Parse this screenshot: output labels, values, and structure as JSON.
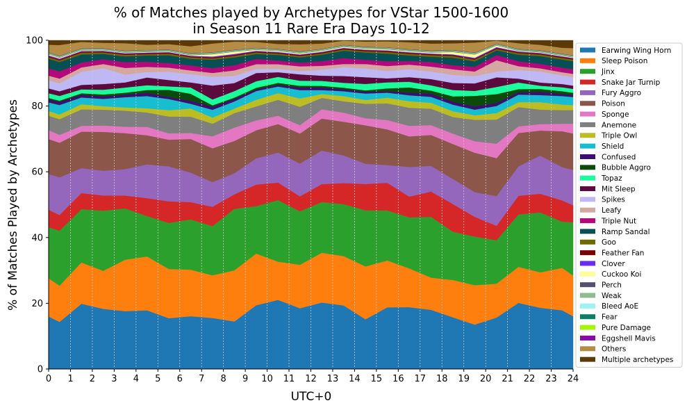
{
  "chart_data": {
    "type": "area",
    "stacked": true,
    "title_lines": [
      "% of Matches played by Archetypes for VStar 1500-1600",
      "in Season 11 Rare Era Days 10-12"
    ],
    "xlabel": "UTC+0",
    "ylabel": "% of Matches Played by Archetypes",
    "xlim": [
      0,
      24
    ],
    "ylim": [
      0,
      100
    ],
    "x_ticks": [
      0,
      1,
      2,
      3,
      4,
      5,
      6,
      7,
      8,
      9,
      10,
      11,
      12,
      13,
      14,
      15,
      16,
      17,
      18,
      19,
      20,
      21,
      22,
      23,
      24
    ],
    "y_ticks": [
      0,
      20,
      40,
      60,
      80,
      100
    ],
    "grid": "vertical dashed at each hour",
    "legend_position": "right, outside plot",
    "x": [
      0,
      0.5,
      1.5,
      2.5,
      3.5,
      4.5,
      5.5,
      6.5,
      7.5,
      8.5,
      9.5,
      10.5,
      11.5,
      12.5,
      13.5,
      14.5,
      15.5,
      16.5,
      17.5,
      18.5,
      19.5,
      20.5,
      21.5,
      22.5,
      23.5,
      24
    ],
    "series": [
      {
        "name": "Earwing Wing Horn",
        "color": "#1f77b4",
        "values": [
          16.5,
          15,
          20.2,
          19,
          18,
          18.3,
          16,
          16.8,
          15.8,
          14.7,
          19.5,
          20.8,
          18.2,
          20.3,
          19.6,
          15.5,
          18.5,
          18.8,
          18,
          15.5,
          13.5,
          16,
          20.2,
          19,
          18,
          16.2
        ]
      },
      {
        "name": "Sleep Poison",
        "color": "#ff7f0e",
        "values": [
          12,
          11.5,
          12.8,
          12,
          16,
          16.8,
          15.5,
          14.8,
          13.2,
          15.8,
          15.8,
          11.5,
          13,
          15.2,
          15.2,
          16.5,
          14,
          11.8,
          9.8,
          11.2,
          12,
          10.5,
          11,
          11,
          13,
          12.5
        ]
      },
      {
        "name": "Jinx",
        "color": "#2ca02c",
        "values": [
          16,
          17.5,
          16.5,
          19,
          16,
          12.6,
          14.5,
          16,
          15.2,
          19,
          14.5,
          18.5,
          16,
          15.5,
          16,
          17.5,
          15,
          15.5,
          18.5,
          14.5,
          14.8,
          13.5,
          16,
          18.6,
          14.2,
          16.3
        ]
      },
      {
        "name": "Snake Jar Turnip",
        "color": "#d62728",
        "values": [
          5.5,
          5,
          5,
          4.8,
          4,
          5.6,
          6.8,
          5.5,
          6,
          4.5,
          6.6,
          5.3,
          4.5,
          5.5,
          6.5,
          8.2,
          8.3,
          6.3,
          7.7,
          8.3,
          6,
          4.5,
          5.7,
          5.8,
          6.5,
          5.3
        ]
      },
      {
        "name": "Fury Aggro",
        "color": "#9467bd",
        "values": [
          11.2,
          12,
          7.7,
          7.8,
          8.2,
          10.5,
          11,
          9.4,
          7.6,
          6.5,
          8,
          9,
          9.8,
          10.2,
          8.5,
          6.3,
          5.3,
          9,
          7.8,
          7.5,
          7.5,
          9.2,
          9,
          11.8,
          10.2,
          10.8
        ]
      },
      {
        "name": "Poison",
        "color": "#8c564b",
        "values": [
          11,
          11,
          11.3,
          12.3,
          11.2,
          9.1,
          8.4,
          10.7,
          10.5,
          10,
          8.6,
          8.6,
          9,
          9.8,
          10.4,
          12,
          10.7,
          9.3,
          9.4,
          10.5,
          12,
          11.8,
          10.2,
          7.8,
          11,
          11.2
        ]
      },
      {
        "name": "Sponge",
        "color": "#e377c2",
        "values": [
          2.8,
          2.5,
          1.8,
          2,
          2,
          2.6,
          2,
          1.9,
          3.7,
          4.1,
          3,
          2.5,
          2.5,
          2.8,
          2.8,
          2.2,
          2.8,
          3.2,
          3,
          3.1,
          3.5,
          4.5,
          2,
          2,
          2.3,
          3
        ]
      },
      {
        "name": "Anemone",
        "color": "#7f7f7f",
        "values": [
          4.5,
          5,
          5.1,
          5,
          5,
          4.5,
          5.3,
          5.2,
          3.9,
          4.5,
          4.3,
          4.8,
          5.5,
          3.5,
          3.5,
          4.5,
          5,
          5.5,
          5,
          5,
          6.5,
          7.5,
          5.9,
          4.5,
          4.2,
          4.2
        ]
      },
      {
        "name": "Triple Owl",
        "color": "#bcbd22",
        "values": [
          1.5,
          1.5,
          1.6,
          1.1,
          1,
          1.3,
          2,
          2.6,
          1.9,
          1.4,
          2,
          2,
          2.5,
          1.2,
          1.6,
          1.2,
          1.7,
          2,
          1.8,
          1.7,
          1.4,
          2,
          1.5,
          2.3,
          1.7,
          1.5
        ]
      },
      {
        "name": "Shield",
        "color": "#17becf",
        "values": [
          2.7,
          3,
          2.1,
          2.3,
          3.2,
          3.8,
          3.5,
          1.5,
          2.4,
          2.2,
          2.7,
          2,
          2.5,
          1.2,
          1.5,
          2,
          1.5,
          1.8,
          1.8,
          2,
          1.7,
          2.2,
          2.3,
          2.2,
          2.6,
          2.5
        ]
      },
      {
        "name": "Confused",
        "color": "#3b0f6f",
        "values": [
          1,
          1,
          0.9,
          0.8,
          0.8,
          1,
          0.7,
          1,
          1,
          0.8,
          0.5,
          0.5,
          0.8,
          0.8,
          0.6,
          0.6,
          0.5,
          0.8,
          1,
          0.9,
          1,
          1,
          0.7,
          1,
          0.7,
          0.6
        ]
      },
      {
        "name": "Bubble Aggro",
        "color": "#0a4a0a",
        "values": [
          0.4,
          0.4,
          0.4,
          0.6,
          0.6,
          0.9,
          2.2,
          2.2,
          0.4,
          0.4,
          0.5,
          0.6,
          0.5,
          0.5,
          0.5,
          0.4,
          0.8,
          1.6,
          0.9,
          1.6,
          3.2,
          2.7,
          1,
          0.9,
          0.8,
          0.7
        ]
      },
      {
        "name": "Topaz",
        "color": "#1aff9c",
        "values": [
          1.5,
          1.5,
          1.2,
          1.5,
          1.6,
          1.5,
          1.1,
          2,
          1.8,
          2,
          2,
          1.8,
          1.5,
          1.5,
          1.5,
          2,
          1.8,
          1.7,
          1.6,
          1.9,
          1.5,
          2.2,
          2,
          1,
          1.2,
          1.2
        ]
      },
      {
        "name": "Mit Sleep",
        "color": "#5c0a3d",
        "values": [
          1.5,
          1.5,
          1.4,
          1.8,
          1.6,
          2.4,
          2,
          1.6,
          4.3,
          2.5,
          2.5,
          1.4,
          1.9,
          1.6,
          2.1,
          2.1,
          1.2,
          1.4,
          1.9,
          2.1,
          2.3,
          3,
          1.2,
          1,
          1,
          1
        ]
      },
      {
        "name": "Spikes",
        "color": "#c0b8f5",
        "values": [
          2.5,
          2.5,
          4,
          5,
          2.4,
          1.7,
          2.6,
          2.6,
          2.7,
          2.2,
          1.2,
          1,
          1,
          1.8,
          2.7,
          2.7,
          2.2,
          2.4,
          2.3,
          2.4,
          2.2,
          1.8,
          2.6,
          3.4,
          2.6,
          2.6
        ]
      },
      {
        "name": "Leafy",
        "color": "#d4a8a0",
        "values": [
          1.5,
          1.5,
          1.4,
          1.3,
          2.1,
          1.6,
          1.3,
          1.2,
          1.2,
          1.7,
          1.5,
          1.4,
          1.4,
          1.2,
          1,
          1.4,
          1.5,
          1.4,
          1.5,
          1.7,
          1.4,
          3.5,
          1.2,
          1,
          1,
          1
        ]
      },
      {
        "name": "Triple Nut",
        "color": "#b5087a",
        "values": [
          2.3,
          2.3,
          1.5,
          1.5,
          1.8,
          1.6,
          1.4,
          1.6,
          1.5,
          1.6,
          1.6,
          1.1,
          1.1,
          1.4,
          1.8,
          1.3,
          1.4,
          1.1,
          1.4,
          1.2,
          1.4,
          1.6,
          1.5,
          1.4,
          1.4,
          1.4
        ]
      },
      {
        "name": "Ramp Sandal",
        "color": "#064f55",
        "values": [
          3,
          3,
          2.5,
          1.7,
          1.8,
          2,
          2.5,
          2.1,
          2.6,
          2.4,
          1.5,
          1.7,
          1.6,
          2,
          2.3,
          2.3,
          2.3,
          1.7,
          1.6,
          2.3,
          1.7,
          1.5,
          2,
          2.4,
          2.5,
          2.5
        ]
      },
      {
        "name": "Goo",
        "color": "#6e6a00",
        "values": [
          0.5,
          0.5,
          0.6,
          0.5,
          0.5,
          0.4,
          0.5,
          0.5,
          0.4,
          0.5,
          0.5,
          0.4,
          0.4,
          0.4,
          0.4,
          0.4,
          0.5,
          0.5,
          0.5,
          0.5,
          0.5,
          0.4,
          0.5,
          0.5,
          0.5,
          0.5
        ]
      },
      {
        "name": "Feather Fan",
        "color": "#7a0000",
        "values": [
          0.3,
          0.3,
          0.3,
          0.3,
          0.3,
          0.3,
          0.3,
          0.3,
          0.3,
          0.3,
          0.3,
          0.3,
          0.3,
          0.3,
          0.3,
          0.3,
          0.3,
          0.3,
          0.3,
          0.3,
          0.3,
          0.3,
          0.3,
          0.3,
          0.3,
          0.3
        ]
      },
      {
        "name": "Clover",
        "color": "#6a2bf5",
        "values": [
          0.3,
          0.3,
          0.2,
          0.2,
          0.2,
          0.2,
          0.2,
          0.2,
          0.3,
          0.3,
          0.2,
          0.2,
          0.2,
          0.2,
          0.2,
          0.2,
          0.2,
          0.2,
          0.2,
          0.2,
          0.3,
          0.3,
          0.2,
          0.2,
          0.2,
          0.2
        ]
      },
      {
        "name": "Cuckoo Koi",
        "color": "#ffff99",
        "values": [
          0.3,
          0.3,
          0.2,
          0.2,
          0.2,
          0.2,
          0.2,
          0.2,
          0.7,
          0.7,
          0.3,
          0.3,
          0.3,
          0.3,
          0.3,
          0.3,
          0.3,
          0.3,
          0.3,
          0.7,
          1,
          0.5,
          0.2,
          0.2,
          0.2,
          0.2
        ]
      },
      {
        "name": "Perch",
        "color": "#54506e",
        "values": [
          0.1,
          0.1,
          0.1,
          0.1,
          0.1,
          0.1,
          0.1,
          0.1,
          0.1,
          0.1,
          0.1,
          0.1,
          0.1,
          0.1,
          0.1,
          0.1,
          0.1,
          0.1,
          0.1,
          0.1,
          0.1,
          0.1,
          0.1,
          0.1,
          0.1,
          0.1
        ]
      },
      {
        "name": "Weak",
        "color": "#8fbc8f",
        "values": [
          0.1,
          0.1,
          0.1,
          0.1,
          0.1,
          0.1,
          0.1,
          0.1,
          0.1,
          0.1,
          0.1,
          0.1,
          0.1,
          0.1,
          0.1,
          0.1,
          0.1,
          0.1,
          0.1,
          0.1,
          0.1,
          0.1,
          0.1,
          0.1,
          0.1,
          0.1
        ]
      },
      {
        "name": "Bleed AoE",
        "color": "#9bf5f5",
        "values": [
          0.1,
          0.1,
          0.1,
          0.1,
          0.1,
          0.1,
          0.1,
          0.1,
          0.1,
          0.1,
          0.1,
          0.1,
          0.1,
          0.1,
          0.1,
          0.1,
          0.1,
          0.1,
          0.1,
          0.1,
          0.1,
          0.1,
          0.1,
          0.1,
          0.1,
          0.1
        ]
      },
      {
        "name": "Fear",
        "color": "#0b7f66",
        "values": [
          0.1,
          0.1,
          0.1,
          0.1,
          0.1,
          0.1,
          0.1,
          0.1,
          0.1,
          0.1,
          0.1,
          0.1,
          0.1,
          0.1,
          0.1,
          0.1,
          0.1,
          0.1,
          0.1,
          0.1,
          0.1,
          0.1,
          0.1,
          0.1,
          0.1,
          0.1
        ]
      },
      {
        "name": "Pure Damage",
        "color": "#a4f50a",
        "values": [
          0.1,
          0.1,
          0.1,
          0.1,
          0.1,
          0.1,
          0.1,
          0.1,
          0.1,
          0.1,
          0.1,
          0.1,
          0.1,
          0.1,
          0.1,
          0.1,
          0.1,
          0.1,
          0.1,
          0.1,
          0.1,
          0.1,
          0.1,
          0.1,
          0.1,
          0.1
        ]
      },
      {
        "name": "Eggshell Mavis",
        "color": "#880aa8",
        "values": [
          0.1,
          0.1,
          0.1,
          0.1,
          0.1,
          0.1,
          0.1,
          0.1,
          0.1,
          0.1,
          0.1,
          0.1,
          0.1,
          0.1,
          0.1,
          0.1,
          0.1,
          0.1,
          0.1,
          0.1,
          0.1,
          0.1,
          0.1,
          0.1,
          0.1,
          0.1
        ]
      },
      {
        "name": "Others",
        "color": "#b58c45",
        "values": [
          2.4,
          3.4,
          2,
          1.7,
          2.3,
          1.6,
          1.7,
          2.2,
          2.7,
          2.5,
          1.8,
          1.5,
          2.1,
          1.6,
          1.3,
          1.6,
          1.8,
          2.1,
          2.1,
          2,
          3,
          0.9,
          1.7,
          1.7,
          1.8,
          2.2
        ]
      },
      {
        "name": "Multiple archetypes",
        "color": "#5c3a07",
        "values": [
          1.4,
          1.5,
          0.5,
          0.8,
          0.9,
          1.4,
          1.2,
          1.9,
          1,
          0.4,
          0.5,
          1.1,
          1.2,
          1,
          0.1,
          0.4,
          0.3,
          0.6,
          1,
          0.9,
          0.7,
          0.1,
          0.9,
          1.4,
          2.3,
          2.4
        ]
      }
    ]
  }
}
